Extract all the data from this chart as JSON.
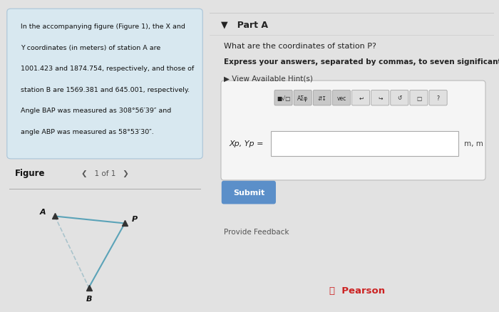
{
  "bg_color": "#e2e2e2",
  "left_panel_bg": "#d8e8f0",
  "right_panel_bg": "#efefef",
  "problem_text_lines": [
    "In the accompanying figure (Figure 1), the X and",
    "Y coordinates (in meters) of station A are",
    "1001.423 and 1874.754, respectively, and those of",
    "station B are 1569.381 and 645.001, respectively.",
    "Angle BAP was measured as 308°56′39″ and",
    "angle ABP was measured as 58°53′30″."
  ],
  "figure_label": "Figure",
  "figure_nav": "1 of 1",
  "part_a_label": "▼   Part A",
  "question_text": "What are the coordinates of station P?",
  "instruction_text": "Express your answers, separated by commas, to seven significant figures.",
  "hint_text": "▶ View Available Hint(s)",
  "answer_label": "Xp, Yp =",
  "answer_units": "m, m",
  "submit_text": "Submit",
  "submit_bg": "#5b8fc9",
  "feedback_text": "Provide Feedback",
  "pearson_text": "Pearson",
  "toolbar_buttons": [
    "■√□",
    "AΣφ",
    "⇵↧",
    "vec",
    "↩",
    "↪",
    "↺",
    "□",
    "?"
  ],
  "A": [
    0.25,
    0.78
  ],
  "B": [
    0.42,
    0.18
  ],
  "P": [
    0.6,
    0.72
  ],
  "line_color_solid": "#5ba3b8",
  "line_color_dashed": "#aac4cc",
  "marker_color": "#333333",
  "label_fontsize": 8,
  "small_fontsize": 7
}
